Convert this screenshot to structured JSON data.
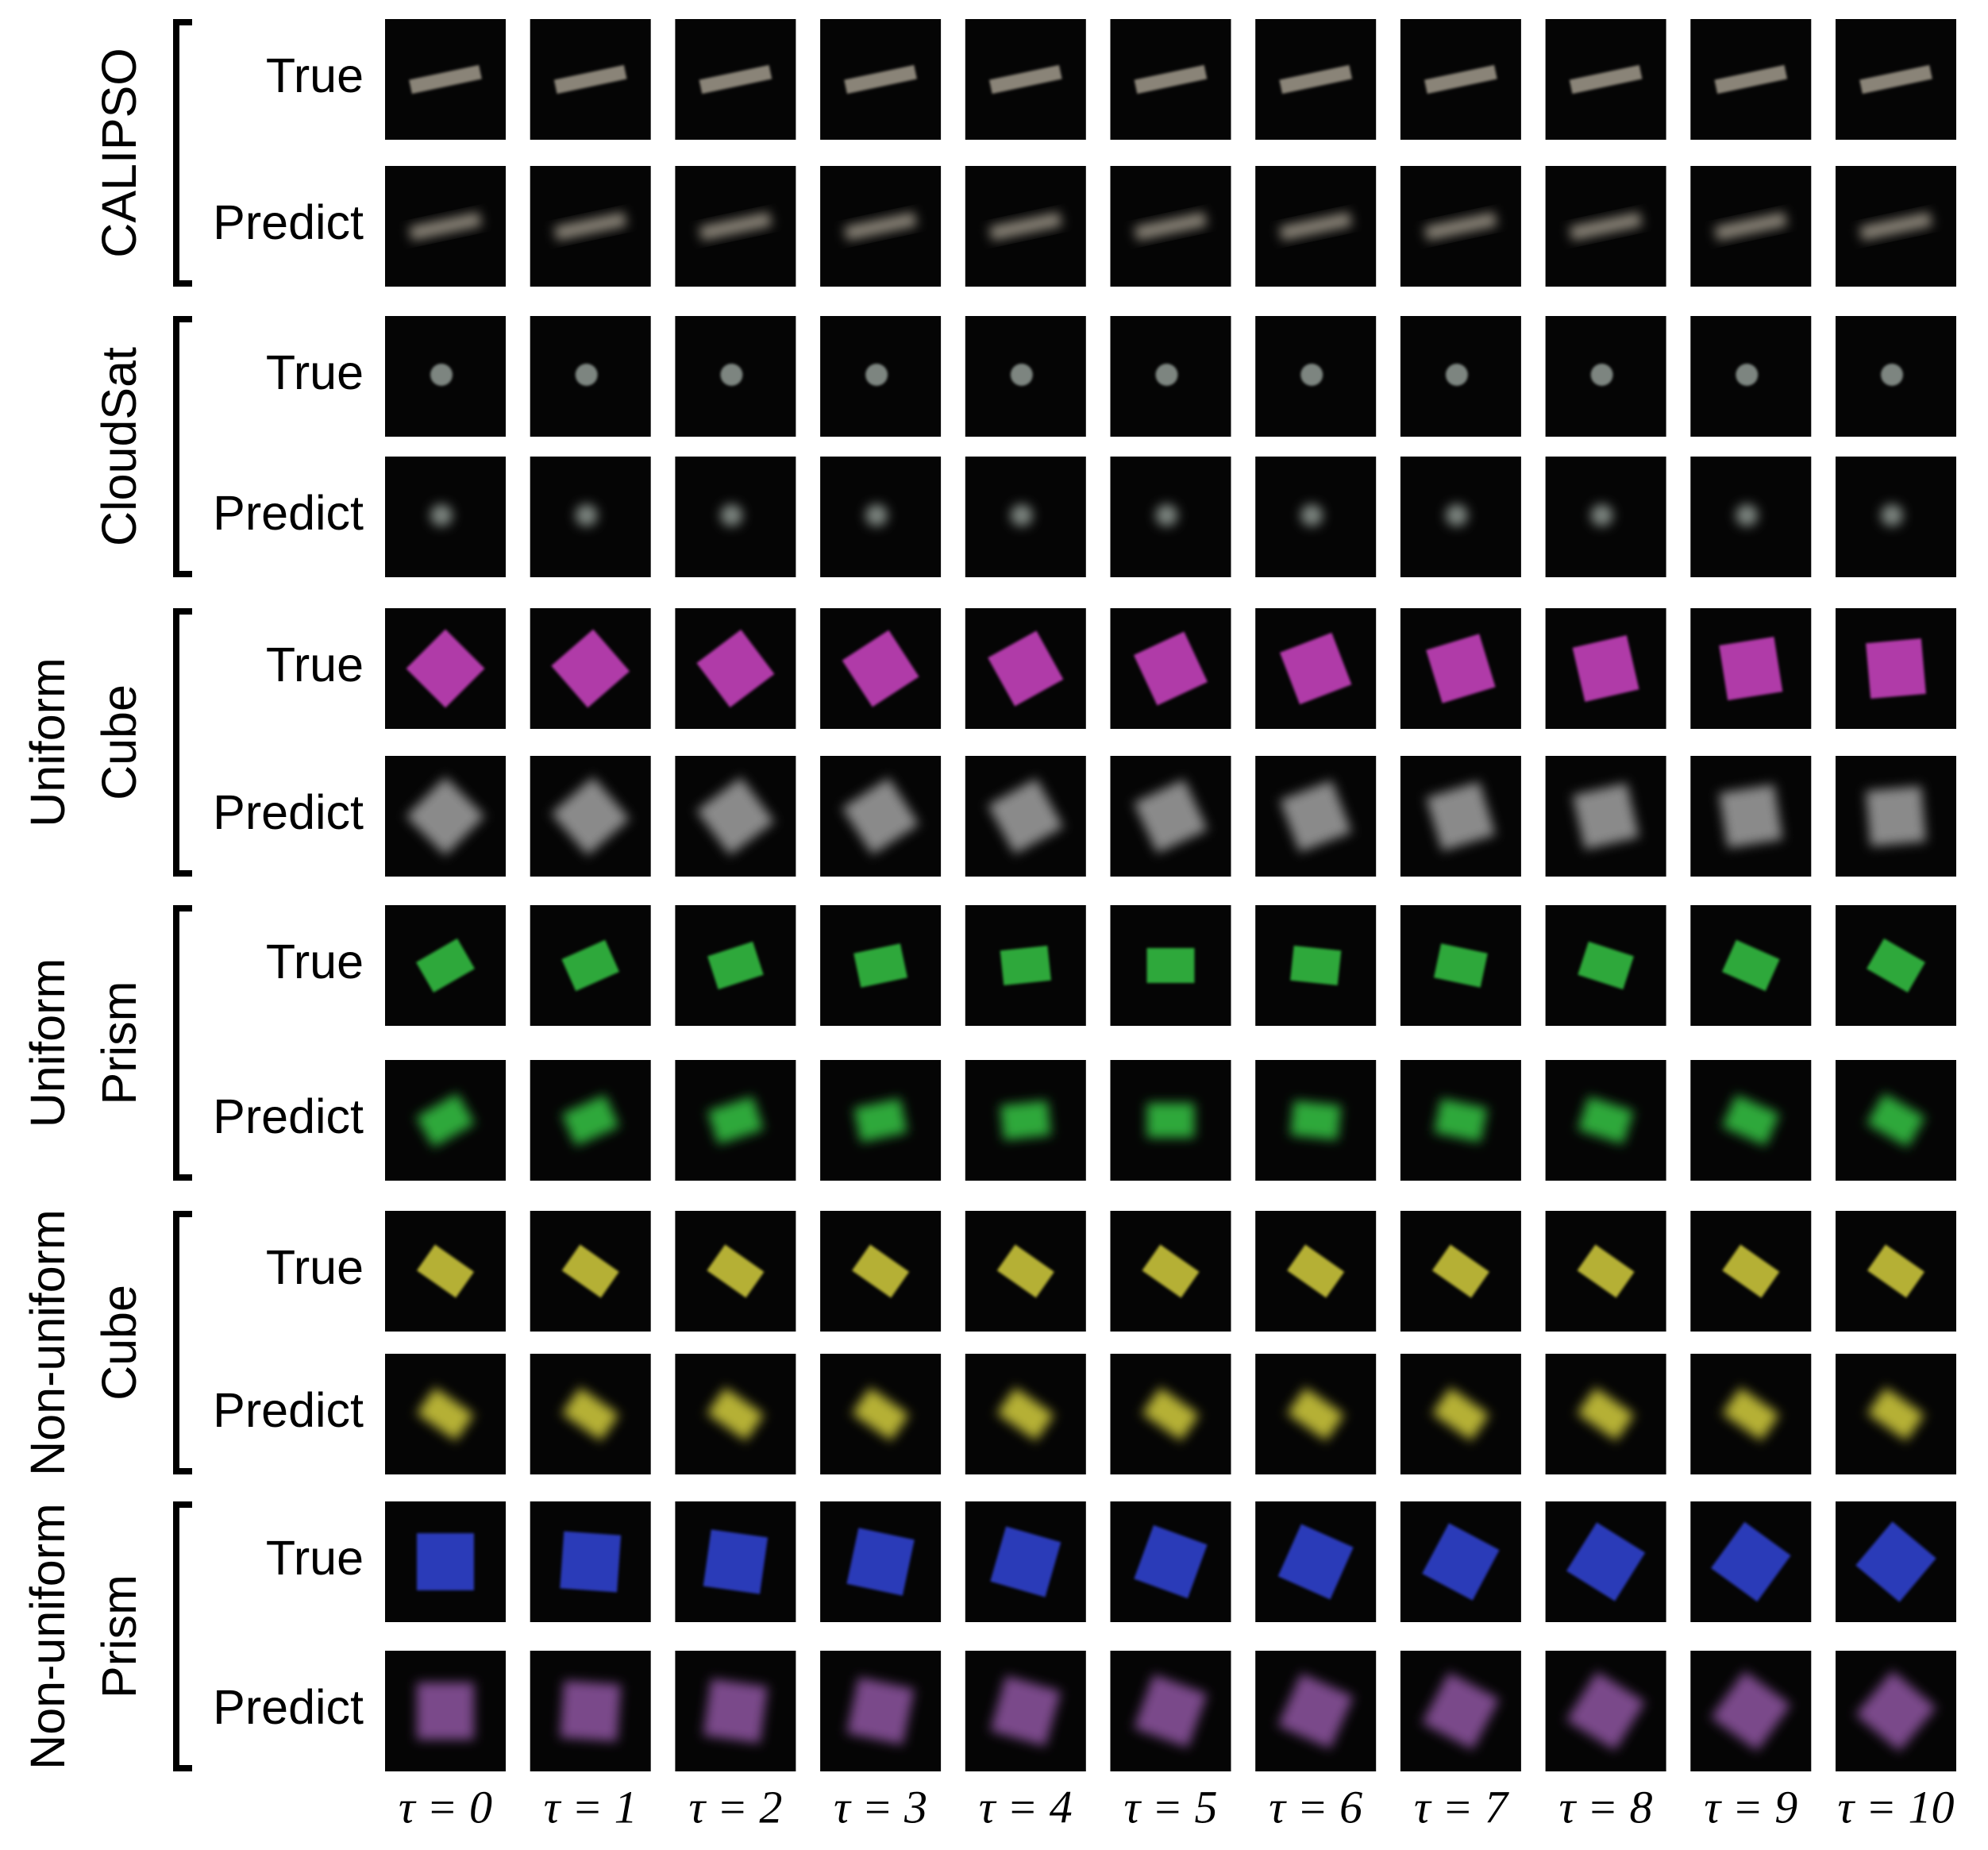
{
  "groups": [
    {
      "label": [
        "CALIPSO"
      ],
      "rows": [
        "True",
        "Predict"
      ]
    },
    {
      "label": [
        "CloudSat"
      ],
      "rows": [
        "True",
        "Predict"
      ]
    },
    {
      "label": [
        "Uniform",
        "Cube"
      ],
      "rows": [
        "True",
        "Predict"
      ]
    },
    {
      "label": [
        "Uniform",
        "Prism"
      ],
      "rows": [
        "True",
        "Predict"
      ]
    },
    {
      "label": [
        "Non-uniform",
        "Cube"
      ],
      "rows": [
        "True",
        "Predict"
      ]
    },
    {
      "label": [
        "Non-uniform",
        "Prism"
      ],
      "rows": [
        "True",
        "Predict"
      ]
    }
  ],
  "columns": [
    "τ = 0",
    "τ = 1",
    "τ = 2",
    "τ = 3",
    "τ = 4",
    "τ = 5",
    "τ = 6",
    "τ = 7",
    "τ = 8",
    "τ = 9",
    "τ = 10"
  ]
}
